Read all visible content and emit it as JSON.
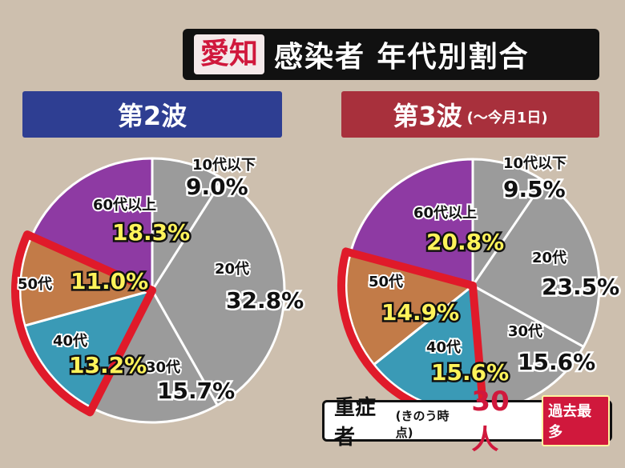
{
  "header": {
    "region": "愛知",
    "title": "感染者 年代別割合"
  },
  "tabs": [
    {
      "label": "第2波",
      "note": ""
    },
    {
      "label": "第3波",
      "note": "(～今月1日)"
    }
  ],
  "chart_data": [
    {
      "type": "pie",
      "title": "第2波",
      "slices": [
        {
          "label": "10代以下",
          "value": 9.0,
          "display": "9.0%",
          "color": "#9b9b9b",
          "highlight": false
        },
        {
          "label": "20代",
          "value": 32.8,
          "display": "32.8%",
          "color": "#9b9b9b",
          "highlight": false
        },
        {
          "label": "30代",
          "value": 15.7,
          "display": "15.7%",
          "color": "#9b9b9b",
          "highlight": false
        },
        {
          "label": "40代",
          "value": 13.2,
          "display": "13.2%",
          "color": "#3a9ab6",
          "highlight": true
        },
        {
          "label": "50代",
          "value": 11.0,
          "display": "11.0%",
          "color": "#c27b48",
          "highlight": true
        },
        {
          "label": "60代以上",
          "value": 18.3,
          "display": "18.3%",
          "color": "#8e3aa3",
          "highlight": false
        }
      ]
    },
    {
      "type": "pie",
      "title": "第3波",
      "slices": [
        {
          "label": "10代以下",
          "value": 9.5,
          "display": "9.5%",
          "color": "#9b9b9b",
          "highlight": false
        },
        {
          "label": "20代",
          "value": 23.5,
          "display": "23.5%",
          "color": "#9b9b9b",
          "highlight": false
        },
        {
          "label": "30代",
          "value": 15.6,
          "display": "15.6%",
          "color": "#9b9b9b",
          "highlight": false
        },
        {
          "label": "40代",
          "value": 15.6,
          "display": "15.6%",
          "color": "#3a9ab6",
          "highlight": true
        },
        {
          "label": "50代",
          "value": 14.9,
          "display": "14.9%",
          "color": "#c27b48",
          "highlight": true
        },
        {
          "label": "60代以上",
          "value": 20.8,
          "display": "20.8%",
          "color": "#8e3aa3",
          "highlight": false
        }
      ]
    }
  ],
  "severe": {
    "label": "重症者",
    "note": "(きのう時点)",
    "count": "30人",
    "badge": "過去最多"
  },
  "colors": {
    "highlight_outline": "#e01a2a",
    "value_yellow": "#fff35a",
    "gray_slice": "#9b9b9b",
    "background": "#cdbfae"
  }
}
